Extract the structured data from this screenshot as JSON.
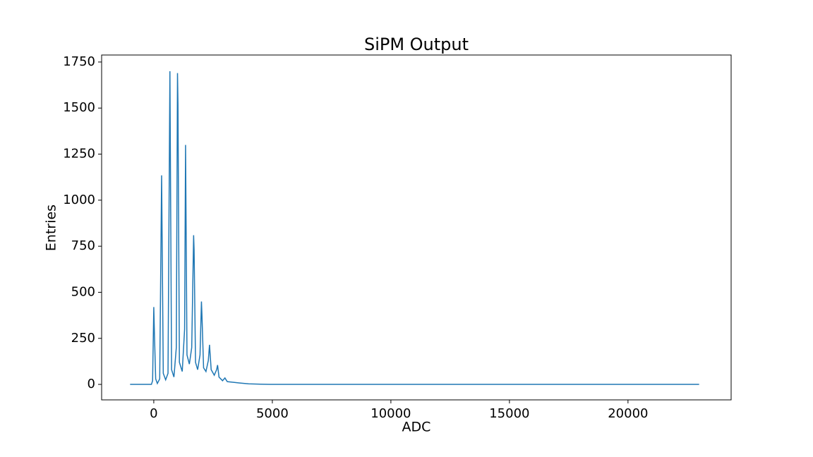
{
  "chart_data": {
    "type": "line",
    "title": "SiPM Output",
    "xlabel": "ADC",
    "ylabel": "Entries",
    "x": [
      -1000,
      -100,
      -50,
      0,
      30,
      80,
      150,
      250,
      330,
      400,
      500,
      600,
      680,
      750,
      850,
      950,
      1000,
      1020,
      1080,
      1200,
      1300,
      1340,
      1400,
      1500,
      1600,
      1680,
      1700,
      1760,
      1850,
      1950,
      2010,
      2030,
      2100,
      2200,
      2300,
      2350,
      2420,
      2550,
      2650,
      2690,
      2750,
      2900,
      3000,
      3100,
      3300,
      3600,
      4000,
      4500,
      5000,
      23000
    ],
    "series": [
      {
        "name": "SiPM",
        "color": "#1f77b4",
        "values": [
          0,
          0,
          20,
          420,
          260,
          30,
          5,
          30,
          1135,
          60,
          25,
          60,
          1700,
          80,
          40,
          200,
          1690,
          1520,
          120,
          70,
          300,
          1300,
          160,
          110,
          200,
          810,
          730,
          120,
          80,
          160,
          450,
          380,
          90,
          70,
          130,
          215,
          80,
          50,
          80,
          105,
          40,
          20,
          35,
          15,
          12,
          8,
          3,
          1,
          0,
          0
        ]
      }
    ],
    "xlim": [
      -2200,
      24350
    ],
    "ylim": [
      -84,
      1788
    ],
    "xticks": [
      0,
      5000,
      10000,
      15000,
      20000
    ],
    "yticks": [
      0,
      250,
      500,
      750,
      1000,
      1250,
      1500,
      1750
    ]
  }
}
